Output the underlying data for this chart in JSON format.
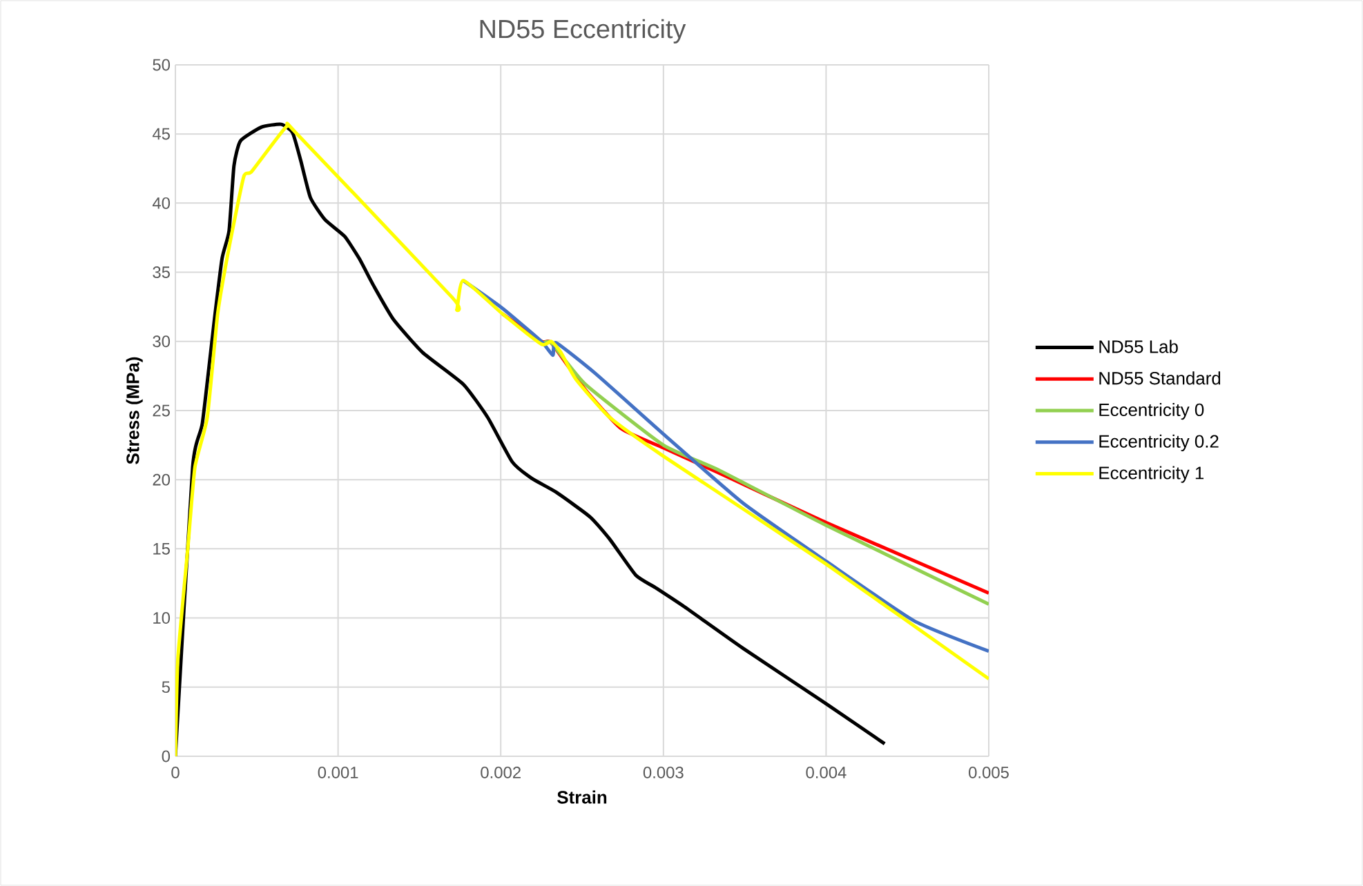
{
  "chart_data": {
    "type": "line",
    "title": "ND55 Eccentricity",
    "xlabel": "Strain",
    "ylabel": "Stress (MPa)",
    "xlim": [
      0,
      0.005
    ],
    "ylim": [
      0,
      50
    ],
    "xticks": [
      0,
      0.001,
      0.002,
      0.003,
      0.004,
      0.005
    ],
    "yticks": [
      0,
      5,
      10,
      15,
      20,
      25,
      30,
      35,
      40,
      45,
      50
    ],
    "grid": true,
    "legend": "right",
    "marker": "none",
    "series": [
      {
        "name": "ND55 Lab",
        "color": "#000000",
        "x": [
          0,
          0.000106,
          0.000166,
          0.00024,
          0.000287,
          0.00033,
          0.00036,
          0.0004,
          0.00053,
          0.00065,
          0.00072,
          0.00077,
          0.00083,
          0.00092,
          0.00104,
          0.00113,
          0.00122,
          0.00134,
          0.00152,
          0.00177,
          0.00192,
          0.00207,
          0.00219,
          0.00234,
          0.00255,
          0.00267,
          0.00283,
          0.00295,
          0.00313,
          0.00349,
          0.004,
          0.00436
        ],
        "values": [
          0,
          20.9,
          24.1,
          31.6,
          36,
          38,
          42.7,
          44.5,
          45.5,
          45.7,
          45.1,
          43.1,
          40.4,
          38.8,
          37.6,
          36,
          34,
          31.6,
          29.2,
          26.9,
          24.5,
          21.3,
          20.1,
          19.1,
          17.3,
          15.7,
          13.1,
          12.2,
          10.8,
          7.8,
          3.8,
          0.9
        ]
      },
      {
        "name": "ND55 Standard",
        "color": "#ff0000",
        "x": [
          0.00201,
          0.00225,
          0.00231,
          0.00252,
          0.00274,
          0.003,
          0.00334,
          0.004,
          0.005
        ],
        "values": [
          32,
          30,
          29.9,
          26.5,
          23.7,
          22.3,
          20.5,
          16.9,
          11.8
        ]
      },
      {
        "name": "Eccentricity 0",
        "color": "#92d050",
        "x": [
          0.00225,
          0.00231,
          0.00252,
          0.003,
          0.00334,
          0.004,
          0.005
        ],
        "values": [
          29.8,
          29.9,
          26.9,
          22.5,
          20.7,
          16.7,
          11
        ]
      },
      {
        "name": "Eccentricity 0.2",
        "color": "#4472c4",
        "x": [
          0.00177,
          0.00201,
          0.00225,
          0.00232,
          0.00234,
          0.00258,
          0.003,
          0.00349,
          0.004,
          0.00454,
          0.005
        ],
        "values": [
          34.4,
          32.4,
          30,
          29,
          29.9,
          27.7,
          23.3,
          18.3,
          14.1,
          9.8,
          7.6
        ]
      },
      {
        "name": "Eccentricity 1",
        "color": "#ffff00",
        "x": [
          0,
          1.5e-05,
          7.6e-05,
          0.00012,
          0.000196,
          0.00026,
          0.00033,
          0.00042,
          0.00047,
          0.00068,
          0.00074,
          0.0017,
          0.00173,
          0.00177,
          0.00201,
          0.00225,
          0.00231,
          0.00237,
          0.00246,
          0.00267,
          0.003,
          0.004,
          0.005
        ],
        "values": [
          0,
          7,
          15,
          20.9,
          24.5,
          32,
          36.8,
          41.9,
          42.3,
          45.5,
          45.1,
          33.2,
          32.3,
          34.4,
          32,
          29.8,
          30,
          29.2,
          27.3,
          24.5,
          21.7,
          13.9,
          5.6
        ]
      }
    ]
  }
}
